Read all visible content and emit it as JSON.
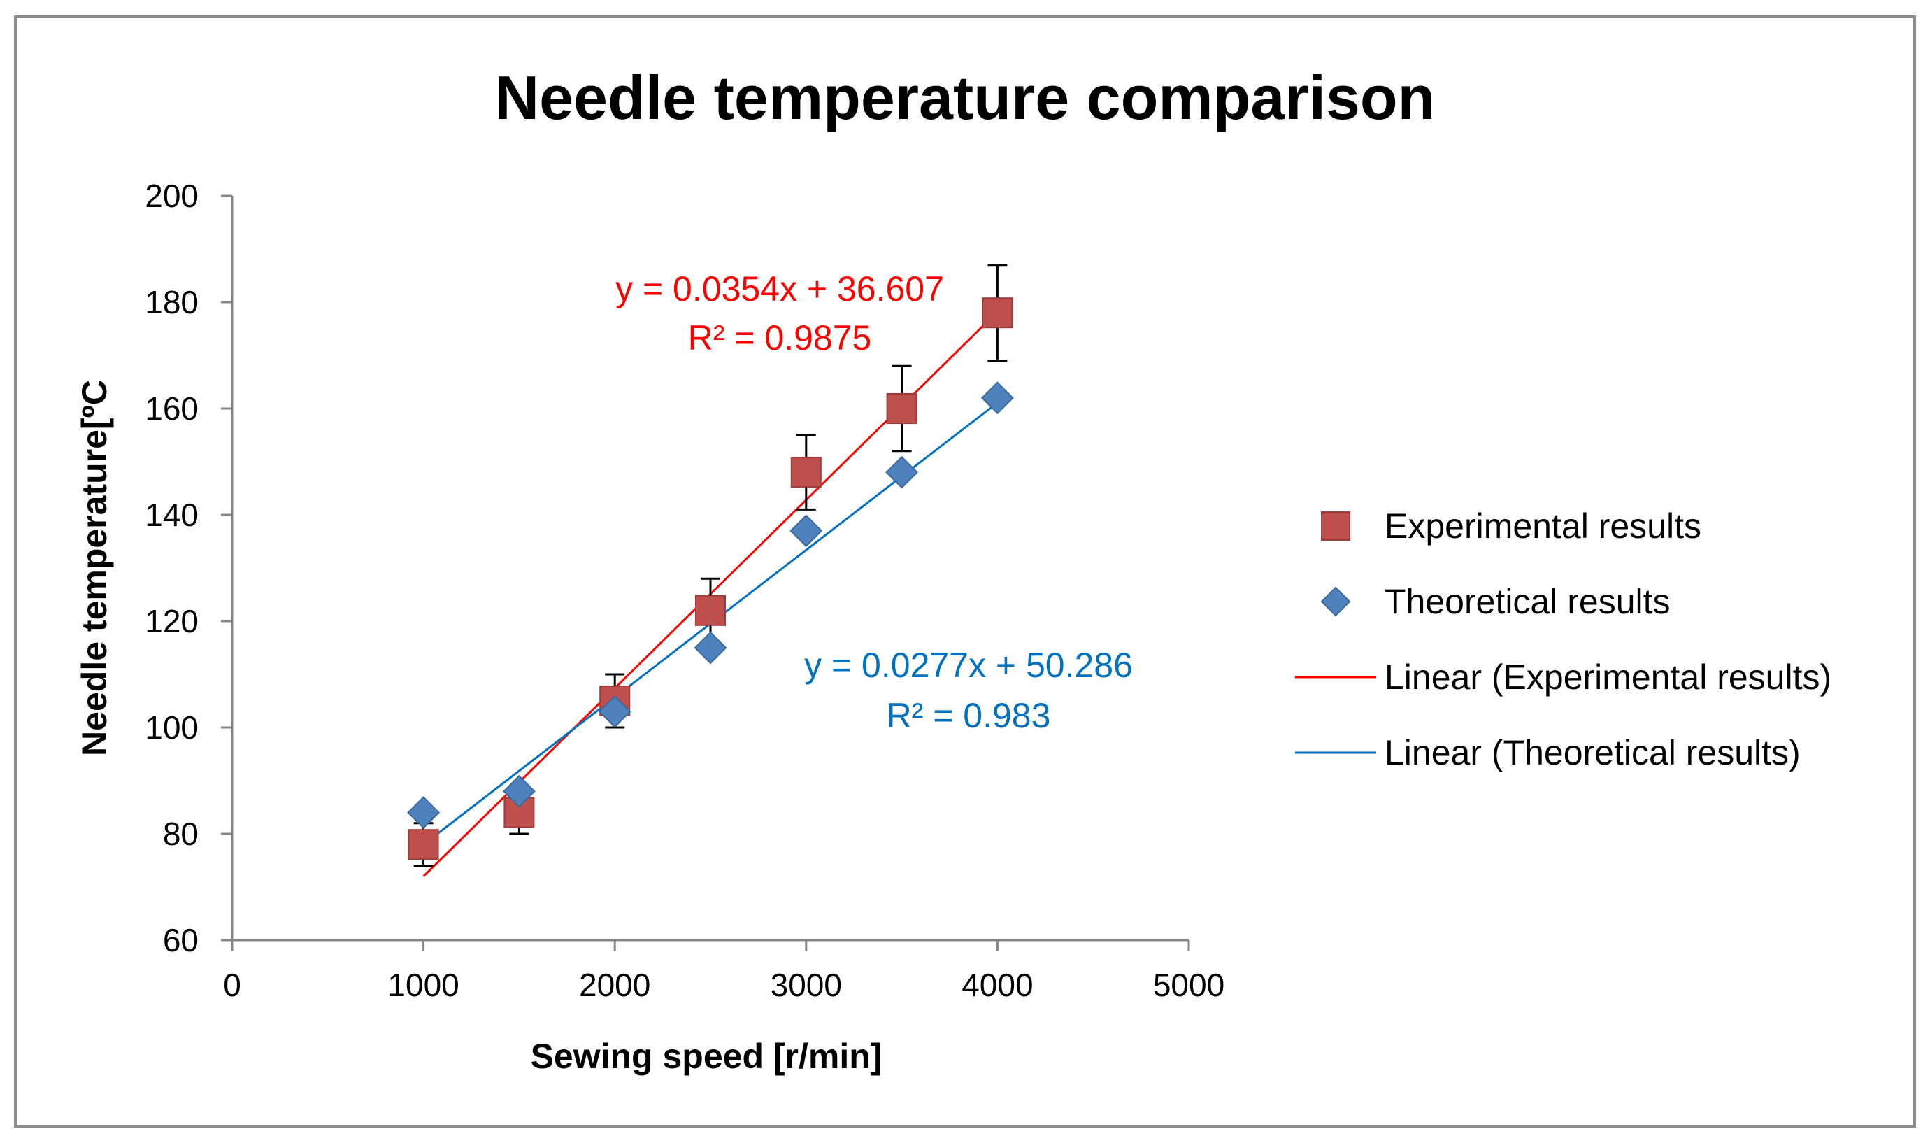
{
  "chart_data": {
    "type": "scatter",
    "title": "Needle temperature comparison",
    "xlabel": "Sewing speed [r/min]",
    "ylabel": "Needle temperature[ºC",
    "xlim": [
      0,
      5000
    ],
    "ylim": [
      60,
      200
    ],
    "xticks": [
      "0",
      "1000",
      "2000",
      "3000",
      "4000",
      "5000"
    ],
    "yticks": [
      "60",
      "80",
      "100",
      "120",
      "140",
      "160",
      "180",
      "200"
    ],
    "grid": false,
    "legend_position": "right",
    "series": [
      {
        "name": "Experimental results",
        "marker": "square",
        "color": "#c0504d",
        "x": [
          1000,
          1500,
          2000,
          2500,
          3000,
          3500,
          4000
        ],
        "y": [
          78,
          84,
          105,
          122,
          148,
          160,
          178
        ],
        "error": [
          4,
          4,
          5,
          6,
          7,
          8,
          9
        ]
      },
      {
        "name": "Theoretical results",
        "marker": "diamond",
        "color": "#4f81bd",
        "x": [
          1000,
          1500,
          2000,
          2500,
          3000,
          3500,
          4000
        ],
        "y": [
          84,
          88,
          103,
          115,
          137,
          148,
          162
        ]
      }
    ],
    "trendlines": [
      {
        "name": "Linear (Experimental results)",
        "color": "#ff0000",
        "slope": 0.0354,
        "intercept": 36.607,
        "x_range": [
          1000,
          4000
        ],
        "equation": "y = 0.0354x + 36.607",
        "r2": "R² = 0.9875"
      },
      {
        "name": "Linear (Theoretical results)",
        "color": "#0070c0",
        "slope": 0.0277,
        "intercept": 50.286,
        "x_range": [
          1000,
          4000
        ],
        "equation": "y = 0.0277x + 50.286",
        "r2": "R² = 0.983"
      }
    ]
  }
}
